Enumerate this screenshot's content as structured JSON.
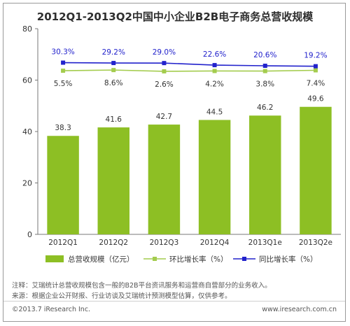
{
  "title": "2012Q1-2013Q2中国中小企业B2B电子商务总营收规模",
  "chart_data": {
    "type": "bar+line",
    "categories": [
      "2012Q1",
      "2012Q2",
      "2012Q3",
      "2012Q4",
      "2013Q1e",
      "2013Q2e"
    ],
    "ylim": [
      0,
      80
    ],
    "yticks": [
      0,
      20,
      40,
      60,
      80
    ],
    "series": [
      {
        "name": "总营收规模（亿元）",
        "type": "bar",
        "color": "#8dbf24",
        "values": [
          38.3,
          41.6,
          42.7,
          44.5,
          46.2,
          49.6
        ],
        "labels": [
          "38.3",
          "41.6",
          "42.7",
          "44.5",
          "46.2",
          "49.6"
        ]
      },
      {
        "name": "环比增长率（%）",
        "type": "line",
        "color": "#a4cc4e",
        "values": [
          5.5,
          8.6,
          2.6,
          4.2,
          3.8,
          7.4
        ],
        "labels": [
          "5.5%",
          "8.6%",
          "2.6%",
          "4.2%",
          "3.8%",
          "7.4%"
        ]
      },
      {
        "name": "同比增长率（%）",
        "type": "line",
        "color": "#2222cc",
        "values": [
          30.3,
          29.2,
          29.0,
          22.6,
          20.6,
          19.2
        ],
        "labels": [
          "30.3%",
          "29.2%",
          "29.0%",
          "22.6%",
          "20.6%",
          "19.2%"
        ]
      }
    ],
    "legend_position": "bottom",
    "grid": false
  },
  "notes": [
    "注释：艾瑞统计总营收规模包含一般的B2B平台资讯服务和运营商自营部分的业务收入。",
    "来源：根据企业公开财报、行业访谈及艾瑞统计预测模型估算，仅供参考。"
  ],
  "footer": {
    "copyright": "©2013.7 iResearch Inc.",
    "site": "www.iresearch.com.cn"
  }
}
